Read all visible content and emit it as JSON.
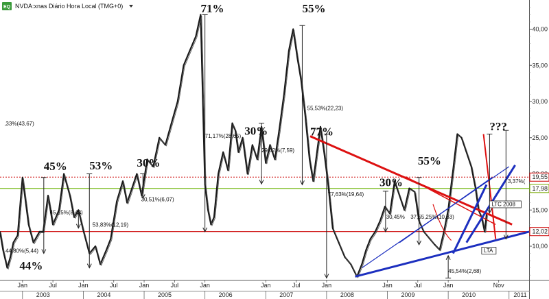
{
  "window": {
    "title": "NVDA:xnas Diário Hora Local (TMG+0)",
    "icon_text": "EQ",
    "dropdown_icon": "triangle-down-icon"
  },
  "price_axis": {
    "ticks": [
      "40,00",
      "35,00",
      "30,00",
      "25,00",
      "20,00",
      "15,00",
      "10,00"
    ],
    "tick_values": [
      40,
      35,
      30,
      25,
      20,
      15,
      10
    ],
    "badges": [
      {
        "text": "19,55",
        "value": 19.55,
        "color": "#cc0000"
      },
      {
        "text": "17,98",
        "value": 17.98,
        "color": "#77aa00"
      },
      {
        "text": "12,02",
        "value": 12.02,
        "color": "#cc0000"
      }
    ]
  },
  "time_axis": {
    "months": [
      {
        "label": "Jan",
        "t": 2003.0
      },
      {
        "label": "Jul",
        "t": 2003.5
      },
      {
        "label": "Jan",
        "t": 2004.0
      },
      {
        "label": "Jul",
        "t": 2004.5
      },
      {
        "label": "Jan",
        "t": 2005.0
      },
      {
        "label": "Jul",
        "t": 2005.5
      },
      {
        "label": "Jan",
        "t": 2006.0
      },
      {
        "label": "Jan",
        "t": 2007.0
      },
      {
        "label": "Jul",
        "t": 2007.5
      },
      {
        "label": "Jan",
        "t": 2008.0
      },
      {
        "label": "Jan",
        "t": 2009.0
      },
      {
        "label": "Jul",
        "t": 2009.5
      },
      {
        "label": "Jan",
        "t": 2010.0
      },
      {
        "label": "Nov",
        "t": 2010.83
      }
    ],
    "years": [
      {
        "label": "2003",
        "t": 2003.0
      },
      {
        "label": "2004",
        "t": 2004.0
      },
      {
        "label": "2005",
        "t": 2005.0
      },
      {
        "label": "2006",
        "t": 2006.0
      },
      {
        "label": "2007",
        "t": 2007.0
      },
      {
        "label": "2008",
        "t": 2008.0
      },
      {
        "label": "2009",
        "t": 2009.0
      },
      {
        "label": "2010",
        "t": 2010.0
      },
      {
        "label": "2011",
        "t": 2011.0
      }
    ]
  },
  "annotations_big": [
    {
      "text": "44%",
      "t": 2002.95,
      "v": 6.8
    },
    {
      "text": "45%",
      "t": 2003.35,
      "v": 20.5
    },
    {
      "text": "53%",
      "t": 2004.1,
      "v": 20.6
    },
    {
      "text": "30%",
      "t": 2004.88,
      "v": 21.0
    },
    {
      "text": "71%",
      "t": 2005.93,
      "v": 42.3
    },
    {
      "text": "30%",
      "t": 2006.65,
      "v": 25.4
    },
    {
      "text": "55%",
      "t": 2007.6,
      "v": 42.3
    },
    {
      "text": "77%",
      "t": 2007.73,
      "v": 25.3
    },
    {
      "text": "30%",
      "t": 2008.87,
      "v": 18.3
    },
    {
      "text": "55%",
      "t": 2009.5,
      "v": 21.3
    },
    {
      "text": "???",
      "t": 2010.68,
      "v": 26.0
    }
  ],
  "annotations_small": [
    {
      "text": ",33%(43,67)",
      "t": 2002.7,
      "v": 26.7
    },
    {
      "text": "71,17%(28,65)",
      "t": 2006.0,
      "v": 25.0
    },
    {
      "text": "29,02%(7,59)",
      "t": 2006.93,
      "v": 23.0
    },
    {
      "text": "55,53%(22,23)",
      "t": 2007.68,
      "v": 28.8
    },
    {
      "text": "45,15%(8,48)",
      "t": 2003.45,
      "v": 14.4
    },
    {
      "text": "30,51%(6,07)",
      "t": 2004.95,
      "v": 16.2
    },
    {
      "text": "53,83%(12,19)",
      "t": 2004.15,
      "v": 12.7
    },
    {
      "text": "44,80%(5,44)",
      "t": 2002.72,
      "v": 9.1
    },
    {
      "text": "77,63%(19,64)",
      "t": 2008.02,
      "v": 16.9
    },
    {
      "text": "30,45%",
      "t": 2008.98,
      "v": 13.8
    },
    {
      "text": "37,55,25%(10,63)",
      "t": 2009.38,
      "v": 13.8
    },
    {
      "text": "45,54%(2,68)",
      "t": 2010.0,
      "v": 6.3
    },
    {
      "text": "3,37%(",
      "t": 2010.98,
      "v": 18.7
    }
  ],
  "chart_labels": [
    {
      "text": "LTC 2008",
      "t": 2010.68,
      "v": 15.5
    },
    {
      "text": "LTA",
      "t": 2010.55,
      "v": 9.1
    }
  ],
  "chart_data": {
    "type": "line",
    "title": "",
    "xlabel": "",
    "ylabel": "",
    "ylim": [
      3.5,
      45.0
    ],
    "xlim": [
      2002.63,
      2011.33
    ],
    "grid": false,
    "series": [
      {
        "x": [
          2002.63,
          2002.68,
          2002.75,
          2002.8,
          2002.85,
          2002.92,
          2003.0,
          2003.1,
          2003.18,
          2003.28,
          2003.34,
          2003.42,
          2003.5,
          2003.6,
          2003.68,
          2003.78,
          2003.85,
          2003.92,
          2004.0,
          2004.1,
          2004.2,
          2004.28,
          2004.38,
          2004.45,
          2004.55,
          2004.65,
          2004.72,
          2004.8,
          2004.88,
          2004.96,
          2005.05,
          2005.15,
          2005.25,
          2005.35,
          2005.45,
          2005.55,
          2005.65,
          2005.75,
          2005.85,
          2005.93,
          2006.0,
          2006.05,
          2006.1,
          2006.15,
          2006.22,
          2006.3,
          2006.38,
          2006.45,
          2006.5,
          2006.55,
          2006.62,
          2006.7,
          2006.78,
          2006.86,
          2006.93,
          2007.0,
          2007.07,
          2007.15,
          2007.22,
          2007.3,
          2007.38,
          2007.45,
          2007.52,
          2007.58,
          2007.65,
          2007.72,
          2007.78,
          2007.85,
          2007.9,
          2007.96,
          2008.02,
          2008.1,
          2008.2,
          2008.3,
          2008.4,
          2008.5,
          2008.58,
          2008.65,
          2008.72,
          2008.8,
          2008.88,
          2008.96,
          2009.04,
          2009.12,
          2009.2,
          2009.28,
          2009.36,
          2009.45,
          2009.52,
          2009.6,
          2009.7,
          2009.78,
          2009.86,
          2009.93,
          2010.0,
          2010.08,
          2010.15,
          2010.22,
          2010.3,
          2010.38,
          2010.45,
          2010.5,
          2010.55,
          2010.6,
          2010.63
        ],
        "values": [
          12,
          9.5,
          7,
          8.5,
          10.5,
          11.5,
          19.5,
          13,
          10.5,
          12,
          12,
          17,
          13,
          15,
          20,
          17,
          14,
          15,
          12.2,
          9,
          10,
          7.5,
          9.5,
          11,
          16.2,
          19,
          16,
          18,
          20,
          17,
          22,
          21,
          25,
          24,
          27,
          30,
          35,
          37,
          39,
          42,
          18.5,
          15,
          13,
          14,
          20,
          23,
          20.5,
          27,
          26,
          23,
          25,
          20,
          24,
          22,
          26.5,
          21.5,
          24,
          22,
          26,
          31,
          37,
          40,
          36,
          33,
          28,
          22,
          19,
          23.5,
          26.5,
          23,
          19,
          12.5,
          10.5,
          8.5,
          7.5,
          5.8,
          7.5,
          9.5,
          11,
          12,
          13.5,
          15.5,
          14.5,
          19,
          17,
          15,
          18,
          17.5,
          13.5,
          12,
          11,
          10.2,
          9.5,
          12,
          15,
          20.5,
          25.5,
          25,
          23,
          21,
          18,
          15,
          14,
          12,
          14.4
        ]
      }
    ]
  }
}
